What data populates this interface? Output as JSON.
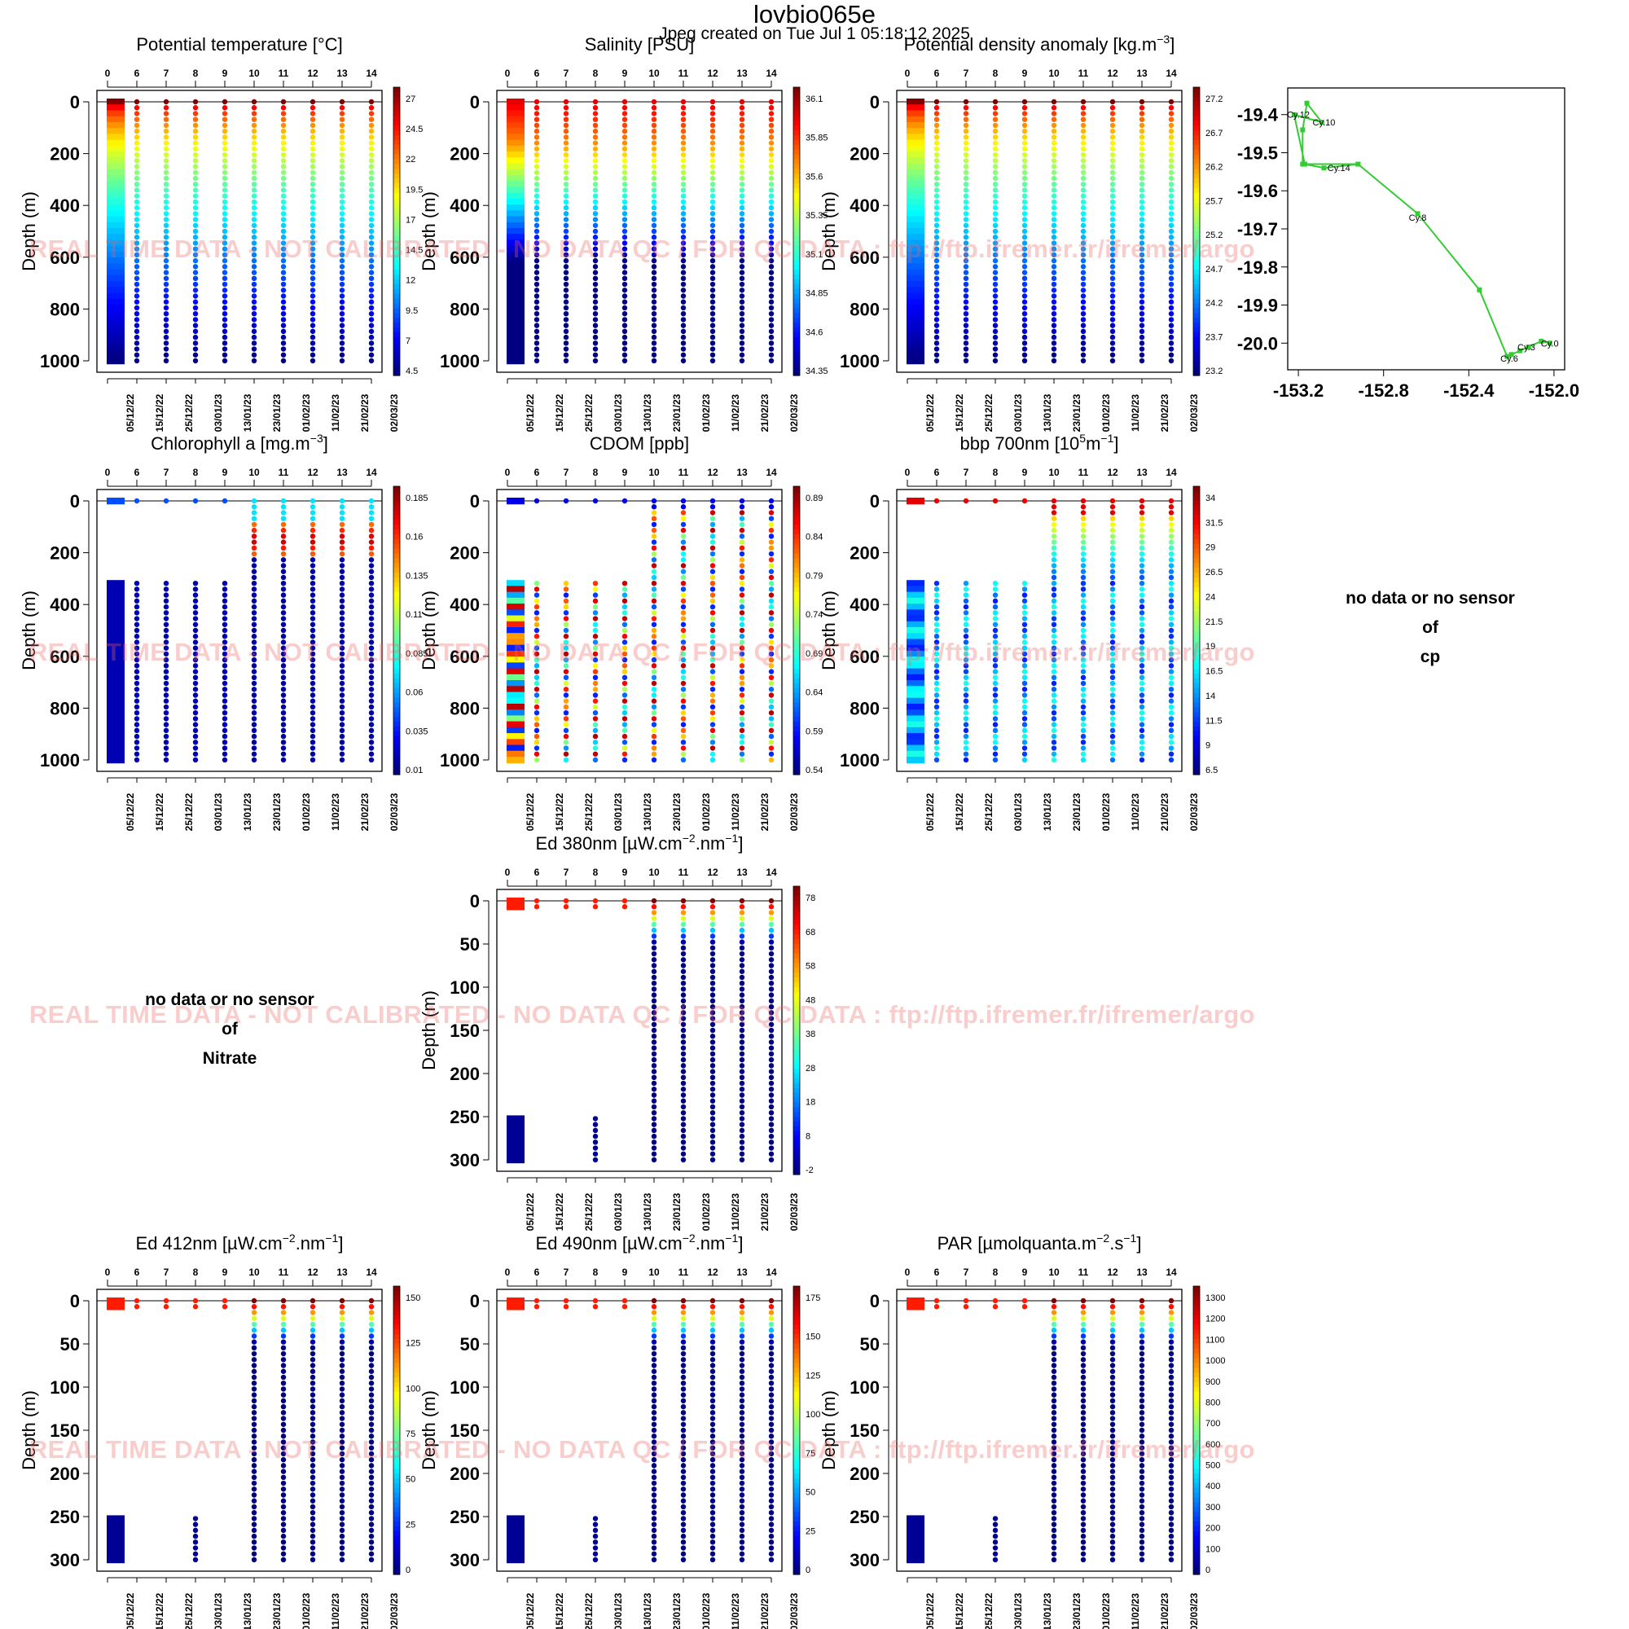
{
  "figure": {
    "title": "lovbio065e",
    "subtitle": "Jpeg created on  Tue Jul  1 05:18:12 2025",
    "watermark": "REAL TIME DATA - NOT CALIBRATED - NO DATA QC  /  FOR QC DATA : ftp://ftp.ifremer.fr/ifremer/argo"
  },
  "no_data": {
    "nitrate": {
      "l1": "no data or no sensor",
      "l2": "of",
      "l3": "Nitrate"
    },
    "cp": {
      "l1": "no data or no sensor",
      "l2": "of",
      "l3": "cp"
    }
  },
  "chart_data": [
    {
      "type": "scatter",
      "id": "temp",
      "title": "Potential temperature [°C]",
      "ylabel": "Depth (m)",
      "ylim": [
        1000,
        0
      ],
      "yticks": [
        0,
        200,
        400,
        600,
        800,
        1000
      ],
      "cycle_ticks": [
        "0",
        "6",
        "7",
        "8",
        "9",
        "10",
        "11",
        "12",
        "13",
        "14"
      ],
      "date_ticks": [
        "05/12/22",
        "15/12/22",
        "25/12/22",
        "03/01/23",
        "13/01/23",
        "23/01/23",
        "01/02/23",
        "11/02/23",
        "21/02/23",
        "02/03/23"
      ],
      "colorbar": [
        "27",
        "24.5",
        "22",
        "19.5",
        "17",
        "14.5",
        "12",
        "9.5",
        "7",
        "4.5"
      ],
      "profile": "temp"
    },
    {
      "type": "scatter",
      "id": "psal",
      "title": "Salinity [PSU]",
      "ylabel": "Depth (m)",
      "ylim": [
        1000,
        0
      ],
      "yticks": [
        0,
        200,
        400,
        600,
        800,
        1000
      ],
      "cycle_ticks": [
        "0",
        "6",
        "7",
        "8",
        "9",
        "10",
        "11",
        "12",
        "13",
        "14"
      ],
      "date_ticks": [
        "05/12/22",
        "15/12/22",
        "25/12/22",
        "03/01/23",
        "13/01/23",
        "23/01/23",
        "01/02/23",
        "11/02/23",
        "21/02/23",
        "02/03/23"
      ],
      "colorbar": [
        "36.1",
        "35.85",
        "35.6",
        "35.35",
        "35.1",
        "34.85",
        "34.6",
        "34.35"
      ],
      "profile": "psal"
    },
    {
      "type": "scatter",
      "id": "sigma",
      "title": "Potential density anomaly [kg.m",
      "title_sup": "−3",
      "title_end": "]",
      "ylabel": "Depth (m)",
      "ylim": [
        1000,
        0
      ],
      "yticks": [
        0,
        200,
        400,
        600,
        800,
        1000
      ],
      "cycle_ticks": [
        "0",
        "6",
        "7",
        "8",
        "9",
        "10",
        "11",
        "12",
        "13",
        "14"
      ],
      "date_ticks": [
        "05/12/22",
        "15/12/22",
        "25/12/22",
        "03/01/23",
        "13/01/23",
        "23/01/23",
        "01/02/23",
        "11/02/23",
        "21/02/23",
        "02/03/23"
      ],
      "colorbar": [
        "27.2",
        "26.7",
        "26.2",
        "25.7",
        "25.2",
        "24.7",
        "24.2",
        "23.7",
        "23.2"
      ],
      "profile": "sigma"
    },
    {
      "type": "line",
      "id": "track",
      "title": "",
      "xlim": [
        -153.25,
        -151.95
      ],
      "ylim": [
        -20.07,
        -19.33
      ],
      "xticks": [
        -153.2,
        -152.8,
        -152.4,
        -152.0
      ],
      "xtick_labels": [
        "-153.2",
        "-152.8",
        "-152.4",
        "-152.0"
      ],
      "yticks": [
        -19.4,
        -19.5,
        -19.6,
        -19.7,
        -19.8,
        -19.9,
        -20.0
      ],
      "ytick_labels": [
        "-19.4",
        "-19.5",
        "-19.6",
        "-19.7",
        "-19.8",
        "-19.9",
        "-20.0"
      ],
      "line_color": "#33cc33",
      "x": [
        -152.02,
        -152.06,
        -152.12,
        -152.16,
        -152.2,
        -152.22,
        -152.35,
        -152.64,
        -152.92,
        -153.18,
        -153.18,
        -153.16,
        -153.09,
        -153.22,
        -153.17,
        -153.08,
        -152.92
      ],
      "y": [
        -20.0,
        -19.995,
        -20.01,
        -20.02,
        -20.03,
        -20.035,
        -19.86,
        -19.66,
        -19.53,
        -19.53,
        -19.44,
        -19.37,
        -19.42,
        -19.4,
        -19.53,
        -19.54,
        -19.53
      ],
      "labels": [
        {
          "text": "Cy.0",
          "x": -152.02,
          "y": -20.0
        },
        {
          "text": "Cy.3",
          "x": -152.13,
          "y": -20.01
        },
        {
          "text": "Cy.6",
          "x": -152.21,
          "y": -20.04
        },
        {
          "text": "Cy.8",
          "x": -152.64,
          "y": -19.67
        },
        {
          "text": "Cy.10",
          "x": -153.08,
          "y": -19.42
        },
        {
          "text": "Cy.12",
          "x": -153.2,
          "y": -19.4
        },
        {
          "text": "Cy.14",
          "x": -153.01,
          "y": -19.54
        }
      ]
    },
    {
      "type": "scatter",
      "id": "chla",
      "title": "Chlorophyll a [mg.m",
      "title_sup": "−3",
      "title_end": "]",
      "ylabel": "Depth (m)",
      "ylim": [
        1000,
        0
      ],
      "yticks": [
        0,
        200,
        400,
        600,
        800,
        1000
      ],
      "cycle_ticks": [
        "0",
        "6",
        "7",
        "8",
        "9",
        "10",
        "11",
        "12",
        "13",
        "14"
      ],
      "date_ticks": [
        "05/12/22",
        "15/12/22",
        "25/12/22",
        "03/01/23",
        "13/01/23",
        "23/01/23",
        "01/02/23",
        "11/02/23",
        "21/02/23",
        "02/03/23"
      ],
      "colorbar": [
        "0.185",
        "0.16",
        "0.135",
        "0.11",
        "0.085",
        "0.06",
        "0.035",
        "0.01"
      ],
      "profile": "chla"
    },
    {
      "type": "scatter",
      "id": "cdom",
      "title": "CDOM  [ppb]",
      "ylabel": "Depth (m)",
      "ylim": [
        1000,
        0
      ],
      "yticks": [
        0,
        200,
        400,
        600,
        800,
        1000
      ],
      "cycle_ticks": [
        "0",
        "6",
        "7",
        "8",
        "9",
        "10",
        "11",
        "12",
        "13",
        "14"
      ],
      "date_ticks": [
        "05/12/22",
        "15/12/22",
        "25/12/22",
        "03/01/23",
        "13/01/23",
        "23/01/23",
        "01/02/23",
        "11/02/23",
        "21/02/23",
        "02/03/23"
      ],
      "colorbar": [
        "0.89",
        "0.84",
        "0.79",
        "0.74",
        "0.69",
        "0.64",
        "0.59",
        "0.54"
      ],
      "profile": "cdom"
    },
    {
      "type": "scatter",
      "id": "bbp",
      "title": "bbp 700nm [10",
      "title_sup": "5",
      "title_mid": "m",
      "title_sup2": "−1",
      "title_end": "]",
      "ylabel": "Depth (m)",
      "ylim": [
        1000,
        0
      ],
      "yticks": [
        0,
        200,
        400,
        600,
        800,
        1000
      ],
      "cycle_ticks": [
        "0",
        "6",
        "7",
        "8",
        "9",
        "10",
        "11",
        "12",
        "13",
        "14"
      ],
      "date_ticks": [
        "05/12/22",
        "15/12/22",
        "25/12/22",
        "03/01/23",
        "13/01/23",
        "23/01/23",
        "01/02/23",
        "11/02/23",
        "21/02/23",
        "02/03/23"
      ],
      "colorbar": [
        "34",
        "31.5",
        "29",
        "26.5",
        "24",
        "21.5",
        "19",
        "16.5",
        "14",
        "11.5",
        "9",
        "6.5"
      ],
      "profile": "bbp"
    },
    {
      "type": "scatter",
      "id": "ed380",
      "title": "Ed 380nm [µW.cm",
      "title_sup": "−2",
      "title_mid": ".nm",
      "title_sup2": "−1",
      "title_end": "]",
      "ylabel": "Depth (m)",
      "ylim": [
        300,
        0
      ],
      "yticks": [
        0,
        50,
        100,
        150,
        200,
        250,
        300
      ],
      "cycle_ticks": [
        "0",
        "6",
        "7",
        "8",
        "9",
        "10",
        "11",
        "12",
        "13",
        "14"
      ],
      "date_ticks": [
        "05/12/22",
        "15/12/22",
        "25/12/22",
        "03/01/23",
        "13/01/23",
        "23/01/23",
        "01/02/23",
        "11/02/23",
        "21/02/23",
        "02/03/23"
      ],
      "colorbar": [
        "78",
        "68",
        "58",
        "48",
        "38",
        "28",
        "18",
        "8",
        "-2"
      ],
      "profile": "rad"
    },
    {
      "type": "scatter",
      "id": "ed412",
      "title": "Ed 412nm [µW.cm",
      "title_sup": "−2",
      "title_mid": ".nm",
      "title_sup2": "−1",
      "title_end": "]",
      "ylabel": "Depth (m)",
      "ylim": [
        300,
        0
      ],
      "yticks": [
        0,
        50,
        100,
        150,
        200,
        250,
        300
      ],
      "cycle_ticks": [
        "0",
        "6",
        "7",
        "8",
        "9",
        "10",
        "11",
        "12",
        "13",
        "14"
      ],
      "date_ticks": [
        "05/12/22",
        "15/12/22",
        "25/12/22",
        "03/01/23",
        "13/01/23",
        "23/01/23",
        "01/02/23",
        "11/02/23",
        "21/02/23",
        "02/03/23"
      ],
      "colorbar": [
        "150",
        "125",
        "100",
        "75",
        "50",
        "25",
        "0"
      ],
      "profile": "rad"
    },
    {
      "type": "scatter",
      "id": "ed490",
      "title": "Ed 490nm [µW.cm",
      "title_sup": "−2",
      "title_mid": ".nm",
      "title_sup2": "−1",
      "title_end": "]",
      "ylabel": "Depth (m)",
      "ylim": [
        300,
        0
      ],
      "yticks": [
        0,
        50,
        100,
        150,
        200,
        250,
        300
      ],
      "cycle_ticks": [
        "0",
        "6",
        "7",
        "8",
        "9",
        "10",
        "11",
        "12",
        "13",
        "14"
      ],
      "date_ticks": [
        "05/12/22",
        "15/12/22",
        "25/12/22",
        "03/01/23",
        "13/01/23",
        "23/01/23",
        "01/02/23",
        "11/02/23",
        "21/02/23",
        "02/03/23"
      ],
      "colorbar": [
        "175",
        "150",
        "125",
        "100",
        "75",
        "50",
        "25",
        "0"
      ],
      "profile": "rad"
    },
    {
      "type": "scatter",
      "id": "par",
      "title": "PAR [µmolquanta.m",
      "title_sup": "−2",
      "title_mid": ".s",
      "title_sup2": "−1",
      "title_end": "]",
      "ylabel": "Depth (m)",
      "ylim": [
        300,
        0
      ],
      "yticks": [
        0,
        50,
        100,
        150,
        200,
        250,
        300
      ],
      "cycle_ticks": [
        "0",
        "6",
        "7",
        "8",
        "9",
        "10",
        "11",
        "12",
        "13",
        "14"
      ],
      "date_ticks": [
        "05/12/22",
        "15/12/22",
        "25/12/22",
        "03/01/23",
        "13/01/23",
        "23/01/23",
        "01/02/23",
        "11/02/23",
        "21/02/23",
        "02/03/23"
      ],
      "colorbar": [
        "1300",
        "1200",
        "1100",
        "1000",
        "900",
        "800",
        "700",
        "600",
        "500",
        "400",
        "300",
        "200",
        "100",
        "0"
      ],
      "profile": "rad"
    }
  ]
}
